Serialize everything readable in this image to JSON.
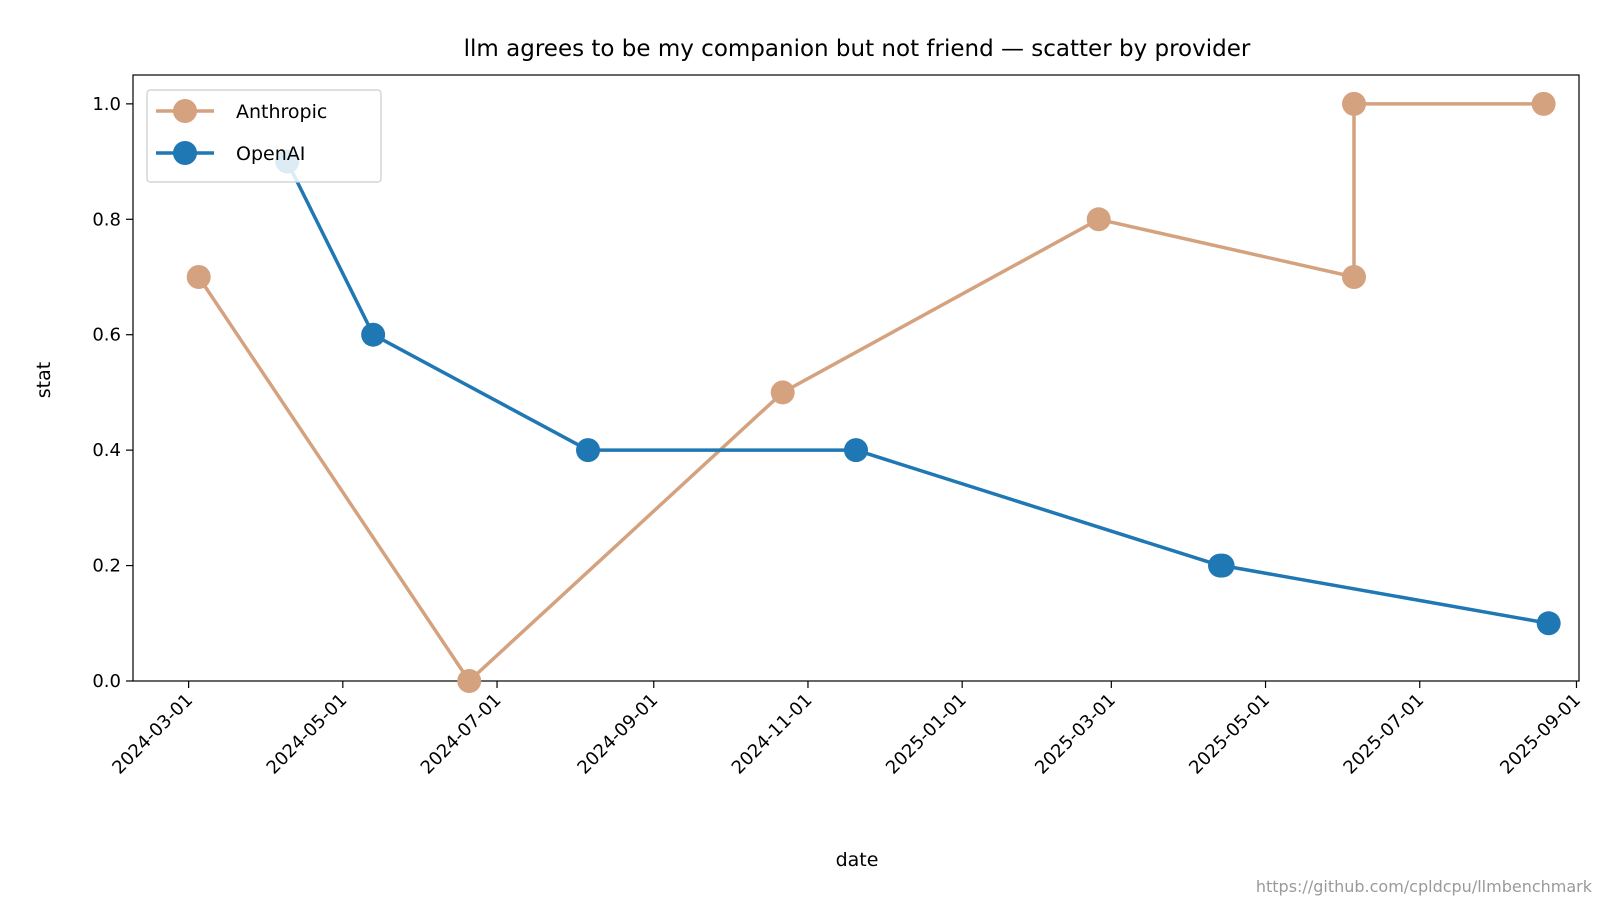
{
  "chart_data": {
    "type": "line",
    "title": "llm agrees to be my companion but not friend — scatter by provider",
    "xlabel": "date",
    "ylabel": "stat",
    "x_range": [
      "2024-02-08",
      "2025-09-02"
    ],
    "ylim": [
      0.0,
      1.05
    ],
    "x_ticks": [
      "2024-03-01",
      "2024-05-01",
      "2024-07-01",
      "2024-09-01",
      "2024-11-01",
      "2025-01-01",
      "2025-03-01",
      "2025-05-01",
      "2025-07-01",
      "2025-09-01"
    ],
    "y_ticks": [
      "0.0",
      "0.2",
      "0.4",
      "0.6",
      "0.8",
      "1.0"
    ],
    "grid": false,
    "legend_position": "upper-left",
    "series": [
      {
        "name": "Anthropic",
        "color": "#d4a27f",
        "points": [
          {
            "x": "2024-03-05",
            "y": 0.7
          },
          {
            "x": "2024-06-20",
            "y": 0.0
          },
          {
            "x": "2024-10-22",
            "y": 0.5
          },
          {
            "x": "2025-02-24",
            "y": 0.8
          },
          {
            "x": "2025-06-05",
            "y": 0.7
          },
          {
            "x": "2025-06-05",
            "y": 1.0
          },
          {
            "x": "2025-08-19",
            "y": 1.0
          }
        ]
      },
      {
        "name": "OpenAI",
        "color": "#1f77b4",
        "points": [
          {
            "x": "2024-04-09",
            "y": 0.9
          },
          {
            "x": "2024-05-13",
            "y": 0.6
          },
          {
            "x": "2024-08-06",
            "y": 0.4
          },
          {
            "x": "2024-11-20",
            "y": 0.4
          },
          {
            "x": "2025-04-13",
            "y": 0.2
          },
          {
            "x": "2025-04-14",
            "y": 0.2
          },
          {
            "x": "2025-08-21",
            "y": 0.1
          }
        ]
      }
    ]
  },
  "credit": "https://github.com/cpldcpu/llmbenchmark"
}
